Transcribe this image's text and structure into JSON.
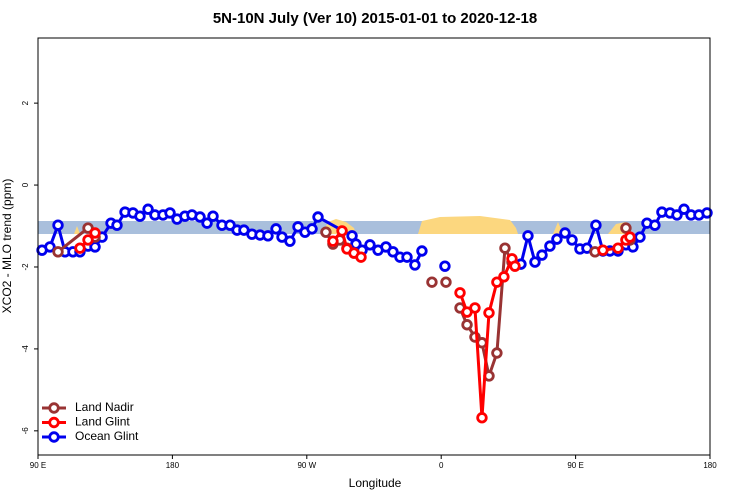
{
  "chart_data": {
    "type": "line",
    "title": "5N-10N July (Ver 10)   2015-01-01 to 2020-12-18",
    "x_label": "Longitude",
    "y_label": "XCO2 - MLO trend (ppm)",
    "xlim": [
      90,
      540
    ],
    "ylim": [
      -6.59,
      3.59
    ],
    "xticks": [
      {
        "value": 90,
        "label": "90 E"
      },
      180,
      {
        "value": 270,
        "label": "90 W"
      },
      {
        "value": 360,
        "label": "0"
      },
      {
        "value": 450,
        "label": "90 E"
      },
      {
        "value": 540,
        "label": "180"
      }
    ],
    "yticks": [
      -6,
      -4,
      -2,
      0,
      2
    ],
    "legend": "bottom-left",
    "series": [
      {
        "name": "Ocean Glint",
        "color": "#0000ee",
        "x": [
          92.7,
          98.0,
          103.4,
          108.1,
          113.4,
          118.1,
          123.5,
          128.2,
          132.9,
          138.9,
          142.9,
          148.3,
          153.6,
          158.3,
          163.7,
          168.3,
          173.7,
          178.4,
          183.1,
          188.4,
          193.1,
          198.5,
          203.2,
          207.2,
          213.2,
          218.6,
          223.3,
          227.9,
          233.3,
          238.7,
          244.0,
          249.4,
          253.4,
          258.7,
          264.1,
          268.8,
          273.5,
          277.5,
          300.3,
          302.9,
          307.0,
          312.3,
          317.7,
          323.0,
          327.7,
          332.4,
          337.1,
          342.4,
          347.1,
          null,
          362.5,
          null,
          413.4,
          418.1,
          422.8,
          427.5,
          432.8,
          437.5,
          442.9,
          447.6,
          452.9,
          457.6,
          463.6,
          468.3,
          473.0,
          478.4,
          483.7,
          488.4,
          493.1,
          497.8,
          503.1,
          507.8,
          513.2,
          517.9,
          522.6,
          527.3,
          532.6,
          538.0
        ],
        "values": [
          -1.59,
          -1.51,
          -0.98,
          -1.63,
          -1.63,
          -1.63,
          -1.49,
          -1.51,
          -1.27,
          -0.93,
          -0.98,
          -0.66,
          -0.68,
          -0.76,
          -0.59,
          -0.73,
          -0.73,
          -0.68,
          -0.83,
          -0.76,
          -0.73,
          -0.78,
          -0.93,
          -0.76,
          -0.98,
          -0.98,
          -1.1,
          -1.1,
          -1.2,
          -1.22,
          -1.24,
          -1.07,
          -1.27,
          -1.37,
          -1.02,
          -1.15,
          -1.07,
          -0.78,
          -1.24,
          -1.44,
          -1.59,
          -1.46,
          -1.59,
          -1.51,
          -1.63,
          -1.76,
          -1.76,
          -1.95,
          -1.61,
          null,
          -1.98,
          null,
          -1.93,
          -1.24,
          -1.88,
          -1.71,
          -1.49,
          -1.32,
          -1.17,
          -1.34,
          -1.56,
          -1.54,
          -0.98,
          -1.61,
          -1.61,
          -1.61,
          -1.46,
          -1.51,
          -1.27,
          -0.93,
          -0.98,
          -0.66,
          -0.68,
          -0.73,
          -0.59,
          -0.73,
          -0.73,
          -0.68
        ]
      },
      {
        "name": "Land Nadir",
        "color": "#993333",
        "x": [
          103.4,
          123.5,
          128.2,
          null,
          282.8,
          287.5,
          292.2,
          296.9,
          301.6,
          null,
          353.8,
          null,
          363.2,
          null,
          372.6,
          377.3,
          382.6,
          387.3,
          392.0,
          397.3,
          402.7,
          407.4,
          null,
          463.0,
          null,
          483.7,
          486.4
        ],
        "values": [
          -1.63,
          -1.05,
          -1.27,
          null,
          -1.15,
          -1.44,
          -1.34,
          -1.54,
          -1.66,
          null,
          -2.37,
          null,
          -2.37,
          null,
          -3.0,
          -3.41,
          -3.71,
          -3.85,
          -4.66,
          -4.1,
          -1.54,
          -1.88,
          null,
          -1.63,
          null,
          -1.05,
          -1.34
        ]
      },
      {
        "name": "Land Glint",
        "color": "#ff0000",
        "x": [
          118.1,
          123.5,
          128.2,
          null,
          287.5,
          293.6,
          296.9,
          301.6,
          306.3,
          null,
          372.6,
          377.3,
          382.6,
          387.3,
          392.0,
          397.3,
          402.0,
          407.4,
          409.4,
          null,
          468.3,
          478.4,
          483.7,
          486.4
        ],
        "values": [
          -1.54,
          -1.34,
          -1.17,
          null,
          -1.37,
          -1.12,
          -1.56,
          -1.66,
          -1.76,
          null,
          -2.63,
          -3.1,
          -3.0,
          -5.68,
          -3.12,
          -2.37,
          -2.24,
          -1.8,
          -1.98,
          null,
          -1.59,
          -1.54,
          -1.34,
          -1.27
        ]
      }
    ]
  }
}
